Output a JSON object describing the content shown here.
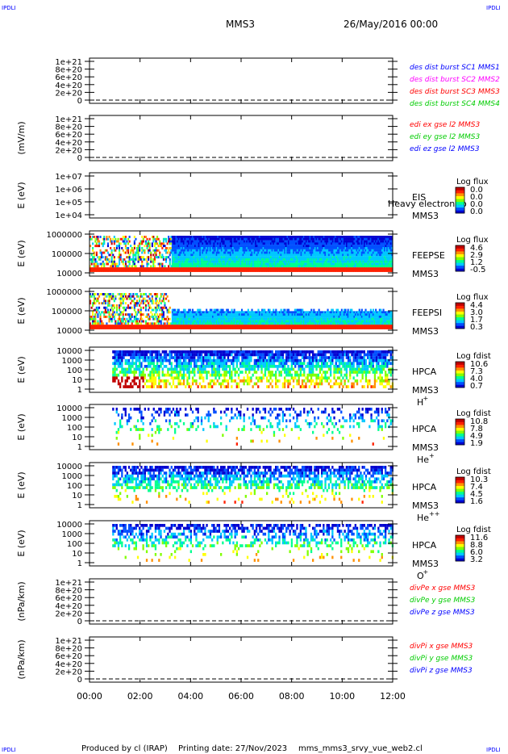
{
  "header": {
    "corner_tl": "IPDLI",
    "corner_tr": "IPDLI",
    "corner_bl": "IPDLI",
    "corner_br": "IPDLI",
    "mission": "MMS3",
    "date": "26/May/2016 00:00"
  },
  "footer": {
    "producer": "Produced by cl (IRAP)",
    "printing": "Printing date: 27/Nov/2023",
    "script": "mms_mms3_srvy_vue_web2.cl"
  },
  "colors": {
    "red": "#ff0000",
    "green": "#00cc00",
    "blue": "#0000ff",
    "magenta": "#ff00ff",
    "spectrogram_scale": [
      "#0000d0",
      "#0050ff",
      "#00c8ff",
      "#00ff90",
      "#80ff00",
      "#ffff00",
      "#ff9000",
      "#ff2000",
      "#c00000"
    ]
  },
  "chart_data": {
    "type": "heatmap",
    "x_ticks": [
      "00:00",
      "02:00",
      "04:00",
      "06:00",
      "08:00",
      "10:00",
      "12:00"
    ],
    "panels": [
      {
        "id": "p1",
        "type": "line",
        "y_ticks": [
          "1e+21",
          "8e+20",
          "6e+20",
          "4e+20",
          "2e+20",
          "0"
        ],
        "legend": [
          {
            "text": "des dist burst SC1 MMS1",
            "color": "#0000ff"
          },
          {
            "text": "des dist burst SC2 MMS2",
            "color": "#ff00ff"
          },
          {
            "text": "des dist burst SC3 MMS3",
            "color": "#ff0000"
          },
          {
            "text": "des dist burst SC4 MMS4",
            "color": "#00cc00"
          }
        ]
      },
      {
        "id": "p2",
        "type": "line",
        "ylabel": "(mV/m)",
        "y_ticks": [
          "1e+21",
          "8e+20",
          "6e+20",
          "4e+20",
          "2e+20",
          "0"
        ],
        "legend": [
          {
            "text": "edi ex gse l2 MMS3",
            "color": "#ff0000"
          },
          {
            "text": "edi ey gse l2 MMS3",
            "color": "#00cc00"
          },
          {
            "text": "edi ez gse l2 MMS3",
            "color": "#0000ff"
          }
        ]
      },
      {
        "id": "p3",
        "type": "heatmap",
        "ylabel": "E (eV)",
        "y_ticks": [
          "1e+07",
          "1e+06",
          "1e+05",
          "1e+04"
        ],
        "name1": "EIS",
        "name2": "MMS3",
        "overlay": "Heavy electron to",
        "cb_title": "Log flux",
        "cb_ticks": [
          "0.0",
          "0.0",
          "0.0",
          "0.0"
        ]
      },
      {
        "id": "p4",
        "type": "heatmap",
        "ylabel": "E (eV)",
        "y_ticks": [
          "1000000",
          "100000",
          "10000"
        ],
        "name1": "FEEPSE",
        "name2": "MMS3",
        "cb_title": "Log flux",
        "cb_ticks": [
          "4.6",
          "2.9",
          "1.2",
          "-0.5"
        ]
      },
      {
        "id": "p5",
        "type": "heatmap",
        "ylabel": "E (eV)",
        "y_ticks": [
          "1000000",
          "100000",
          "10000"
        ],
        "name1": "FEEPSI",
        "name2": "MMS3",
        "cb_title": "Log flux",
        "cb_ticks": [
          "4.4",
          "3.0",
          "1.7",
          "0.3"
        ]
      },
      {
        "id": "p6",
        "type": "heatmap",
        "ylabel": "E (eV)",
        "y_ticks": [
          "10000",
          "1000",
          "100",
          "10",
          "1"
        ],
        "name1": "HPCA",
        "name2": "MMS3",
        "species": "H",
        "charge": "+",
        "cb_title": "Log fdist",
        "cb_ticks": [
          "10.6",
          "7.3",
          "4.0",
          "0.7"
        ]
      },
      {
        "id": "p7",
        "type": "heatmap",
        "ylabel": "E (eV)",
        "y_ticks": [
          "10000",
          "1000",
          "100",
          "10",
          "1"
        ],
        "name1": "HPCA",
        "name2": "MMS3",
        "species": "He",
        "charge": "+",
        "cb_title": "Log fdist",
        "cb_ticks": [
          "10.8",
          "7.8",
          "4.9",
          "1.9"
        ]
      },
      {
        "id": "p8",
        "type": "heatmap",
        "ylabel": "E (eV)",
        "y_ticks": [
          "10000",
          "1000",
          "100",
          "10",
          "1"
        ],
        "name1": "HPCA",
        "name2": "MMS3",
        "species": "He",
        "charge": "++",
        "cb_title": "Log fdist",
        "cb_ticks": [
          "10.3",
          "7.4",
          "4.5",
          "1.6"
        ]
      },
      {
        "id": "p9",
        "type": "heatmap",
        "ylabel": "E (eV)",
        "y_ticks": [
          "10000",
          "1000",
          "100",
          "10",
          "1"
        ],
        "name1": "HPCA",
        "name2": "MMS3",
        "species": "O",
        "charge": "+",
        "cb_title": "Log fdist",
        "cb_ticks": [
          "11.6",
          "8.8",
          "6.0",
          "3.2"
        ]
      },
      {
        "id": "p10",
        "type": "line",
        "ylabel": "(nPa/km)",
        "y_ticks": [
          "1e+21",
          "8e+20",
          "6e+20",
          "4e+20",
          "2e+20",
          "0"
        ],
        "legend": [
          {
            "text": "divPe x gse MMS3",
            "color": "#ff0000"
          },
          {
            "text": "divPe y gse MMS3",
            "color": "#00cc00"
          },
          {
            "text": "divPe z gse MMS3",
            "color": "#0000ff"
          }
        ]
      },
      {
        "id": "p11",
        "type": "line",
        "ylabel": "(nPa/km)",
        "y_ticks": [
          "1e+21",
          "8e+20",
          "6e+20",
          "4e+20",
          "2e+20",
          "0"
        ],
        "legend": [
          {
            "text": "divPi x gse MMS3",
            "color": "#ff0000"
          },
          {
            "text": "divPi y gse MMS3",
            "color": "#00cc00"
          },
          {
            "text": "divPi z gse MMS3",
            "color": "#0000ff"
          }
        ]
      }
    ]
  }
}
